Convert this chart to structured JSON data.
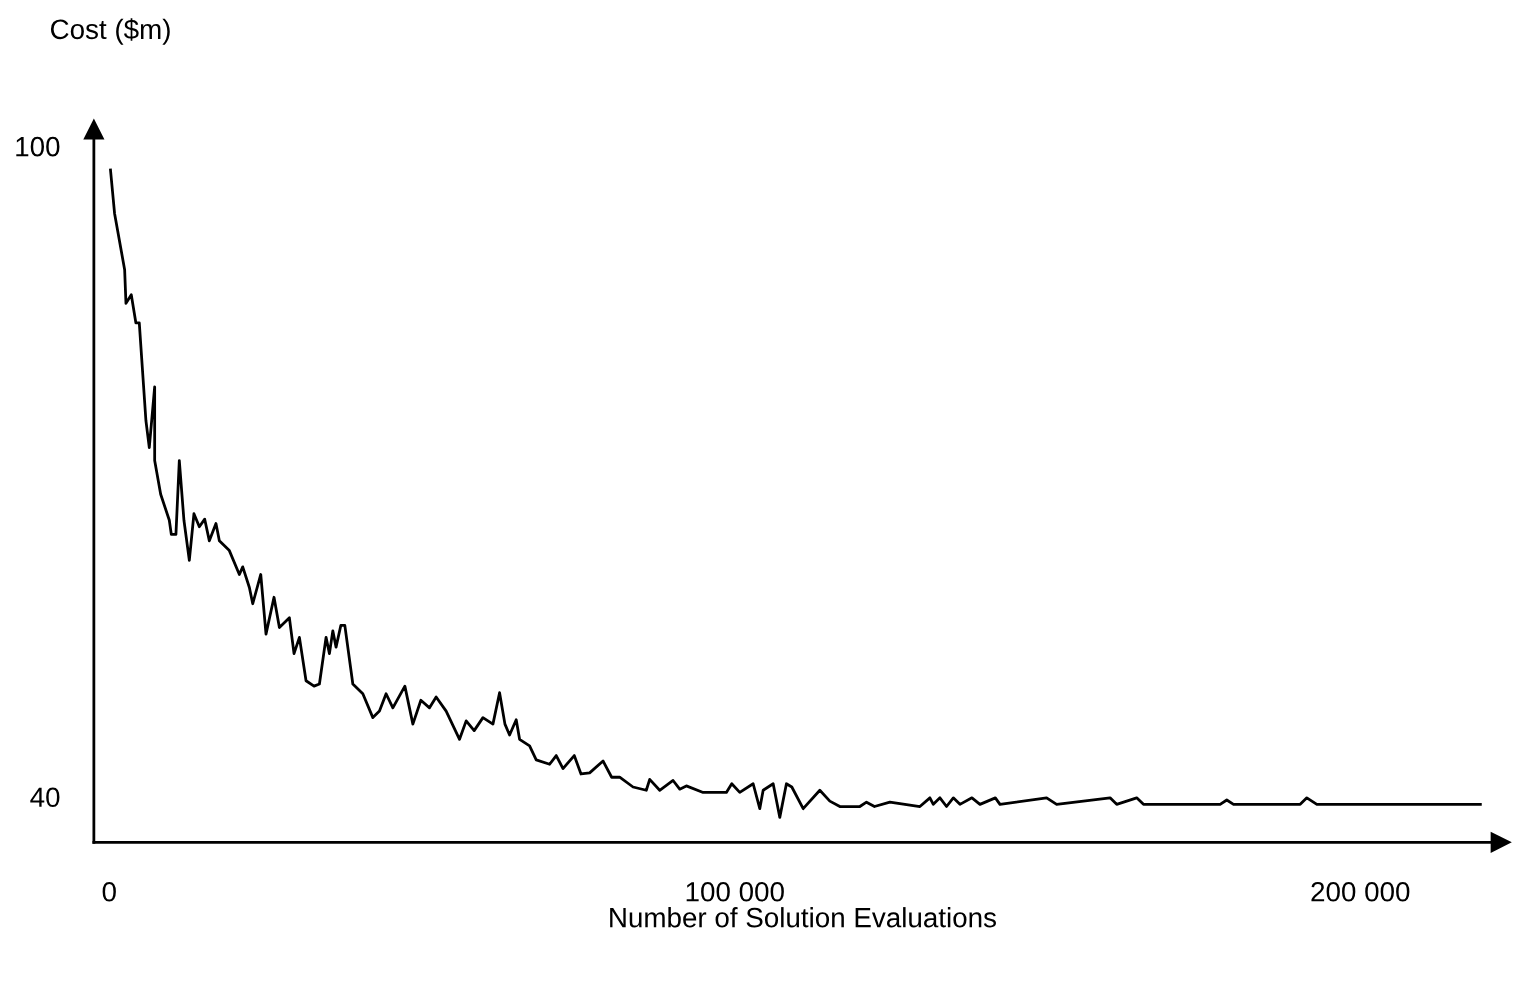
{
  "chart_data": {
    "type": "line",
    "xlabel": "Number of Solution Evaluations",
    "ylabel": "Cost ($m)",
    "xlim": [
      -2460,
      222400
    ],
    "ylim": [
      35.8,
      101.5
    ],
    "xticks": [
      0,
      {
        "value": 100000,
        "label": "100 000"
      },
      {
        "value": 200000,
        "label": "200 000"
      }
    ],
    "yticks": [
      40,
      100
    ],
    "grid": false,
    "legend": false,
    "marker": "none",
    "line_style": "solid",
    "series": [
      {
        "color": "#000000",
        "x": [
          200,
          850,
          2460,
          2670,
          3520,
          4260,
          4800,
          5860,
          6400,
          7260,
          7260,
          8220,
          9600,
          9920,
          10660,
          11200,
          11940,
          12800,
          13540,
          14400,
          15260,
          16000,
          17060,
          17600,
          19200,
          20800,
          21340,
          22400,
          22940,
          24220,
          25060,
          26340,
          27200,
          28800,
          29540,
          30400,
          31460,
          32740,
          33600,
          34660,
          35200,
          35740,
          36260,
          37020,
          37660,
          38940,
          40540,
          42140,
          43200,
          44260,
          45340,
          47260,
          48540,
          49820,
          51200,
          52260,
          53860,
          56000,
          57060,
          58340,
          59740,
          61340,
          62400,
          63260,
          64000,
          65060,
          65600,
          67200,
          68260,
          70400,
          71460,
          72540,
          74340,
          75420,
          76800,
          78940,
          80320,
          81600,
          83740,
          85860,
          86400,
          88000,
          90140,
          91200,
          92260,
          94940,
          98660,
          99520,
          100800,
          102940,
          104000,
          104540,
          106140,
          107200,
          108260,
          109120,
          110940,
          113600,
          115200,
          116800,
          120000,
          121060,
          122340,
          124800,
          129600,
          131200,
          131740,
          132800,
          133860,
          134940,
          136000,
          137920,
          139200,
          141660,
          142400,
          149860,
          151460,
          160000,
          161060,
          164260,
          165340,
          177600,
          178660,
          179740,
          190400,
          191460,
          193060,
          219200
        ],
        "values": [
          97.8,
          93.8,
          88.6,
          85.5,
          86.3,
          83.7,
          83.7,
          74.7,
          72.2,
          77.8,
          71.0,
          67.9,
          65.5,
          64.2,
          64.2,
          71.0,
          65.5,
          61.8,
          66.1,
          64.9,
          65.6,
          63.6,
          65.2,
          63.6,
          62.7,
          60.5,
          61.2,
          59.3,
          57.8,
          60.5,
          55.0,
          58.4,
          55.6,
          56.5,
          53.2,
          54.7,
          50.7,
          50.2,
          50.4,
          54.7,
          53.2,
          55.3,
          53.8,
          55.8,
          55.8,
          50.4,
          49.5,
          47.3,
          47.9,
          49.5,
          48.2,
          50.2,
          46.7,
          48.9,
          48.2,
          49.2,
          47.9,
          45.3,
          47.0,
          46.1,
          47.3,
          46.7,
          49.6,
          46.7,
          45.7,
          47.1,
          45.3,
          44.7,
          43.4,
          43.0,
          43.8,
          42.6,
          43.8,
          42.1,
          42.2,
          43.3,
          41.8,
          41.8,
          40.9,
          40.6,
          41.6,
          40.6,
          41.5,
          40.7,
          41.0,
          40.4,
          40.4,
          41.2,
          40.4,
          41.2,
          38.9,
          40.6,
          41.2,
          38.1,
          41.2,
          40.9,
          38.9,
          40.6,
          39.6,
          39.1,
          39.1,
          39.5,
          39.1,
          39.5,
          39.1,
          39.9,
          39.3,
          39.9,
          39.1,
          39.9,
          39.3,
          39.9,
          39.3,
          39.9,
          39.3,
          39.9,
          39.3,
          39.9,
          39.3,
          39.9,
          39.3,
          39.3,
          39.7,
          39.3,
          39.3,
          39.9,
          39.3,
          39.3
        ]
      }
    ]
  }
}
